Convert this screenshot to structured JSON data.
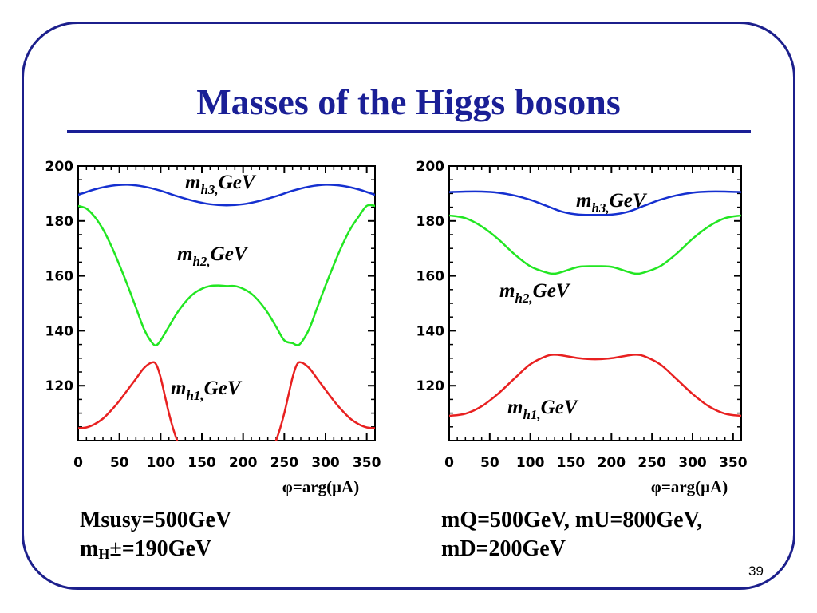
{
  "slide": {
    "title": "Masses of the Higgs bosons",
    "page_number": "39",
    "accent_color": "#1a1f96"
  },
  "notes": {
    "left_line1": "Msusy=500GeV",
    "left_line2_main": "m",
    "left_line2_sub": "H",
    "left_line2_rest": "±=190GeV",
    "right_line1": "mQ=500GeV, mU=800GeV,",
    "right_line2": "mD=200GeV"
  },
  "chart_data": [
    {
      "type": "line",
      "xlabel": "φ=arg(μA)",
      "ylabel": "",
      "xlim": [
        0,
        360
      ],
      "ylim": [
        100,
        200
      ],
      "xticks": [
        0,
        50,
        100,
        150,
        200,
        250,
        300,
        350
      ],
      "yticks": [
        120,
        140,
        160,
        180,
        200
      ],
      "series": [
        {
          "label_main": "m",
          "label_sub": "h3,",
          "label_unit": "GeV",
          "color": "#1530d0",
          "x": [
            0,
            20,
            40,
            60,
            80,
            100,
            120,
            140,
            160,
            180,
            200,
            220,
            240,
            260,
            280,
            300,
            320,
            340,
            360
          ],
          "y": [
            189.5,
            191.5,
            192.8,
            193.2,
            192.5,
            191.0,
            189.0,
            187.3,
            186.1,
            185.7,
            186.1,
            187.3,
            189.0,
            191.0,
            192.5,
            193.2,
            192.8,
            191.5,
            189.5
          ]
        },
        {
          "label_main": "m",
          "label_sub": "h2,",
          "label_unit": "GeV",
          "color": "#22e622",
          "x": [
            0,
            10,
            20,
            30,
            40,
            50,
            60,
            70,
            80,
            90,
            95,
            100,
            110,
            120,
            130,
            140,
            150,
            160,
            170,
            180,
            190,
            200,
            210,
            220,
            230,
            240,
            250,
            260,
            265,
            270,
            280,
            290,
            300,
            310,
            320,
            330,
            340,
            350,
            360
          ],
          "y": [
            185.5,
            184.5,
            181.5,
            177,
            171,
            164,
            156.5,
            148.5,
            140.5,
            135.5,
            134.8,
            136.5,
            141.5,
            146.5,
            150.5,
            153.5,
            155.3,
            156.3,
            156.5,
            156.3,
            156.3,
            155.3,
            153.5,
            150.5,
            146.5,
            141.5,
            136.5,
            135.5,
            134.8,
            135.5,
            140.5,
            148.5,
            156.5,
            164,
            171,
            177,
            181.5,
            185.5,
            185.5
          ]
        },
        {
          "label_main": "m",
          "label_sub": "h1,",
          "label_unit": "GeV",
          "color": "#e82020",
          "x": [
            0,
            10,
            20,
            30,
            40,
            50,
            60,
            70,
            80,
            90,
            95,
            100,
            105,
            110,
            115,
            120,
            125
          ],
          "y": [
            104.5,
            104.8,
            106,
            108,
            111,
            114.5,
            118.5,
            122.5,
            126.5,
            128.5,
            127.5,
            123,
            116.5,
            110,
            104.5,
            100,
            96
          ]
        },
        {
          "label_main": "",
          "label_sub": "",
          "label_unit": "",
          "color": "#e82020",
          "x": [
            235,
            240,
            245,
            250,
            255,
            260,
            265,
            270,
            280,
            290,
            300,
            310,
            320,
            330,
            340,
            350,
            360
          ],
          "y": [
            96,
            100,
            104.5,
            110,
            116.5,
            123,
            127.5,
            128.5,
            126.5,
            122.5,
            118.5,
            114.5,
            111,
            108,
            106,
            104.8,
            104.5
          ]
        }
      ]
    },
    {
      "type": "line",
      "xlabel": "φ=arg(μA)",
      "ylabel": "",
      "xlim": [
        0,
        360
      ],
      "ylim": [
        100,
        200
      ],
      "xticks": [
        0,
        50,
        100,
        150,
        200,
        250,
        300,
        350
      ],
      "yticks": [
        120,
        140,
        160,
        180,
        200
      ],
      "series": [
        {
          "label_main": "m",
          "label_sub": "h3,",
          "label_unit": "GeV",
          "color": "#1530d0",
          "x": [
            0,
            20,
            40,
            60,
            80,
            100,
            120,
            140,
            160,
            180,
            200,
            220,
            240,
            260,
            280,
            300,
            320,
            340,
            360
          ],
          "y": [
            190.5,
            190.7,
            190.7,
            190.3,
            189.3,
            187.7,
            185.5,
            183.3,
            182.3,
            182.2,
            182.3,
            183.3,
            185.5,
            187.7,
            189.3,
            190.3,
            190.7,
            190.7,
            190.5
          ]
        },
        {
          "label_main": "m",
          "label_sub": "h2,",
          "label_unit": "GeV",
          "color": "#22e622",
          "x": [
            0,
            20,
            40,
            60,
            80,
            100,
            120,
            130,
            140,
            160,
            180,
            200,
            220,
            230,
            240,
            260,
            280,
            300,
            320,
            340,
            360
          ],
          "y": [
            182,
            181,
            178,
            173.5,
            168,
            163.5,
            161.2,
            160.8,
            161.5,
            163.3,
            163.5,
            163.3,
            161.5,
            160.8,
            161.2,
            163.5,
            168,
            173.5,
            178,
            181,
            182
          ]
        },
        {
          "label_main": "m",
          "label_sub": "h1,",
          "label_unit": "GeV",
          "color": "#e82020",
          "x": [
            0,
            20,
            40,
            60,
            80,
            100,
            120,
            130,
            140,
            160,
            180,
            200,
            220,
            230,
            240,
            260,
            280,
            300,
            320,
            340,
            360
          ],
          "y": [
            109,
            109.8,
            112.5,
            117,
            122.5,
            127.8,
            130.8,
            131.3,
            131,
            130,
            129.6,
            130,
            131,
            131.3,
            130.8,
            127.8,
            122.5,
            117,
            112.5,
            109.8,
            109
          ]
        }
      ]
    }
  ]
}
